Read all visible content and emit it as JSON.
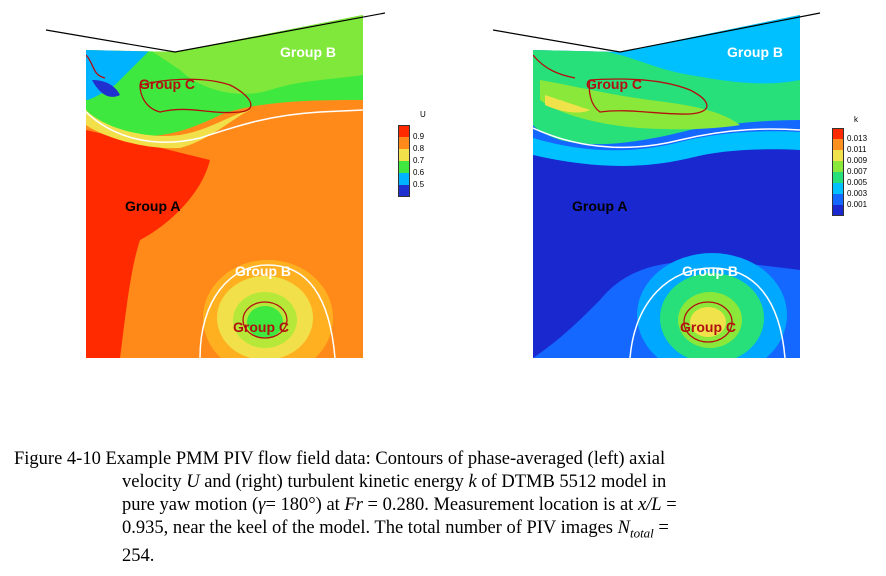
{
  "figure": {
    "left_panel": {
      "legend_title": "U",
      "legend_ticks": [
        "0.9",
        "0.8",
        "0.7",
        "0.6",
        "0.5"
      ],
      "legend_colors": [
        "#ff2a00",
        "#ff8a1a",
        "#f2e04a",
        "#3ee83e",
        "#00b3ff",
        "#2030d0"
      ],
      "labels": {
        "group_b_top": "Group B",
        "group_c_top": "Group C",
        "group_a": "Group A",
        "group_b_bottom": "Group B",
        "group_c_bottom": "Group C"
      }
    },
    "right_panel": {
      "legend_title": "k",
      "legend_ticks": [
        "0.013",
        "0.011",
        "0.009",
        "0.007",
        "0.005",
        "0.003",
        "0.001"
      ],
      "legend_colors": [
        "#ff2a00",
        "#ff9020",
        "#f0e24a",
        "#8ae83a",
        "#28e07a",
        "#00c0ff",
        "#1468ff",
        "#1a28d0"
      ],
      "labels": {
        "group_b_top": "Group B",
        "group_c_top": "Group C",
        "group_a": "Group A",
        "group_b_bottom": "Group B",
        "group_c_bottom": "Group C"
      }
    }
  },
  "caption": {
    "line1_prefix": "Figure 4-10 Example PMM PIV flow field data: Contours of phase-averaged (left) axial",
    "line2_a": "velocity ",
    "line2_U": "U",
    "line2_b": " and (right) turbulent kinetic energy ",
    "line2_k": "k",
    "line2_c": " of DTMB 5512 model in",
    "line3_a": "pure yaw motion (",
    "line3_gamma": "γ",
    "line3_b": "= 180°) at ",
    "line3_Fr": "Fr",
    "line3_c": " = 0.280.  Measurement location is at ",
    "line3_xL": "x/L",
    "line3_d": " =",
    "line4_a": "0.935, near the keel of the model.  The total number of PIV images ",
    "line4_N": "N",
    "line4_sub": "total",
    "line4_b": " =",
    "line5": "254."
  }
}
